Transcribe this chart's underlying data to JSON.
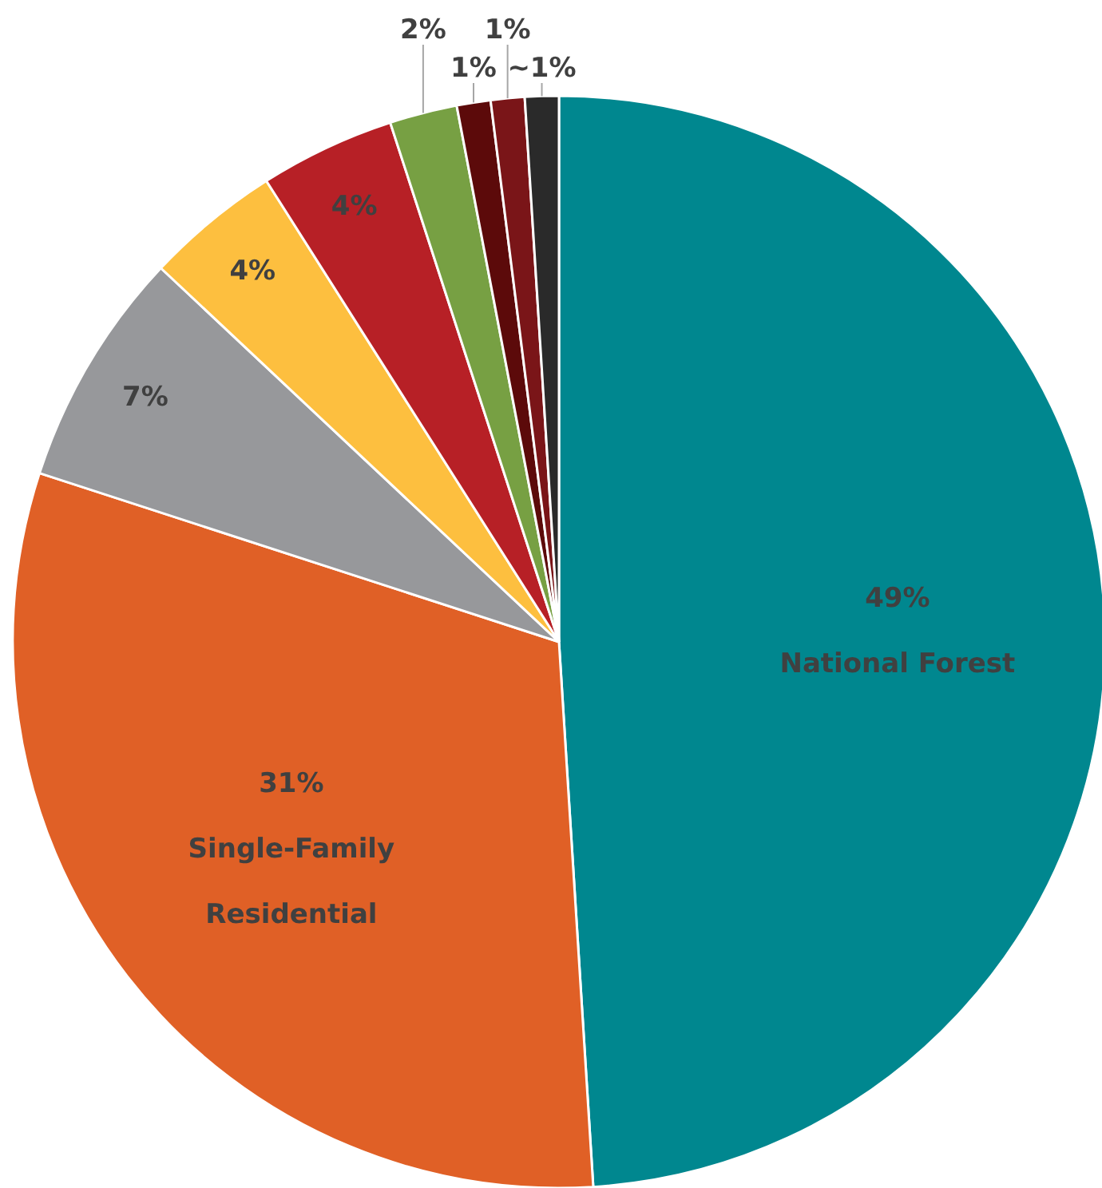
{
  "chart_data": {
    "type": "pie",
    "categories": [
      "National Forest",
      "Single-Family Residential",
      null,
      null,
      null,
      null,
      null,
      null,
      null
    ],
    "values": [
      49,
      31,
      7,
      4,
      4,
      2,
      1,
      1,
      1
    ],
    "value_labels": [
      "49%",
      "31%",
      "7%",
      "4%",
      "4%",
      "2%",
      "1%",
      "1%",
      "~1%"
    ],
    "colors": [
      "#00878f",
      "#e06026",
      "#97989b",
      "#fdbf3f",
      "#b72026",
      "#77a043",
      "#5c0a0a",
      "#7a1518",
      "#2a2a2a"
    ],
    "legend": false
  }
}
